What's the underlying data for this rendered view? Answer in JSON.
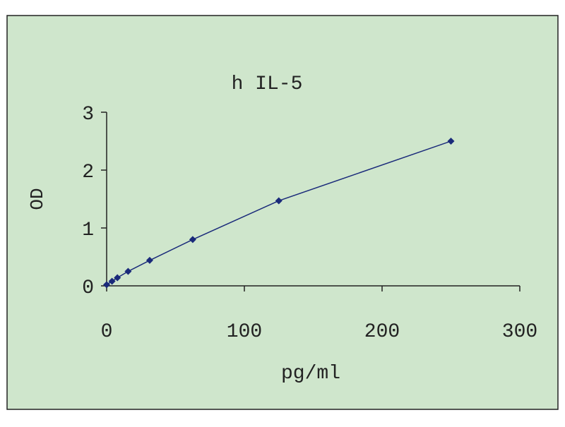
{
  "chart_data": {
    "type": "line",
    "title": "h IL-5",
    "x_label": "pg/ml",
    "y_label": "OD",
    "x": [
      0,
      3.9,
      7.8,
      15.6,
      31.25,
      62.5,
      125,
      250
    ],
    "series": [
      {
        "color": "#1a2a7a",
        "values": [
          0.02,
          0.08,
          0.14,
          0.25,
          0.44,
          0.8,
          1.47,
          2.5
        ]
      }
    ],
    "xlim": [
      0,
      300
    ],
    "xticks": [
      0,
      100,
      200,
      300
    ],
    "ylim": [
      0,
      3
    ],
    "yticks": [
      0,
      1,
      2,
      3
    ],
    "background": "#cfe6cc",
    "grid": false
  }
}
